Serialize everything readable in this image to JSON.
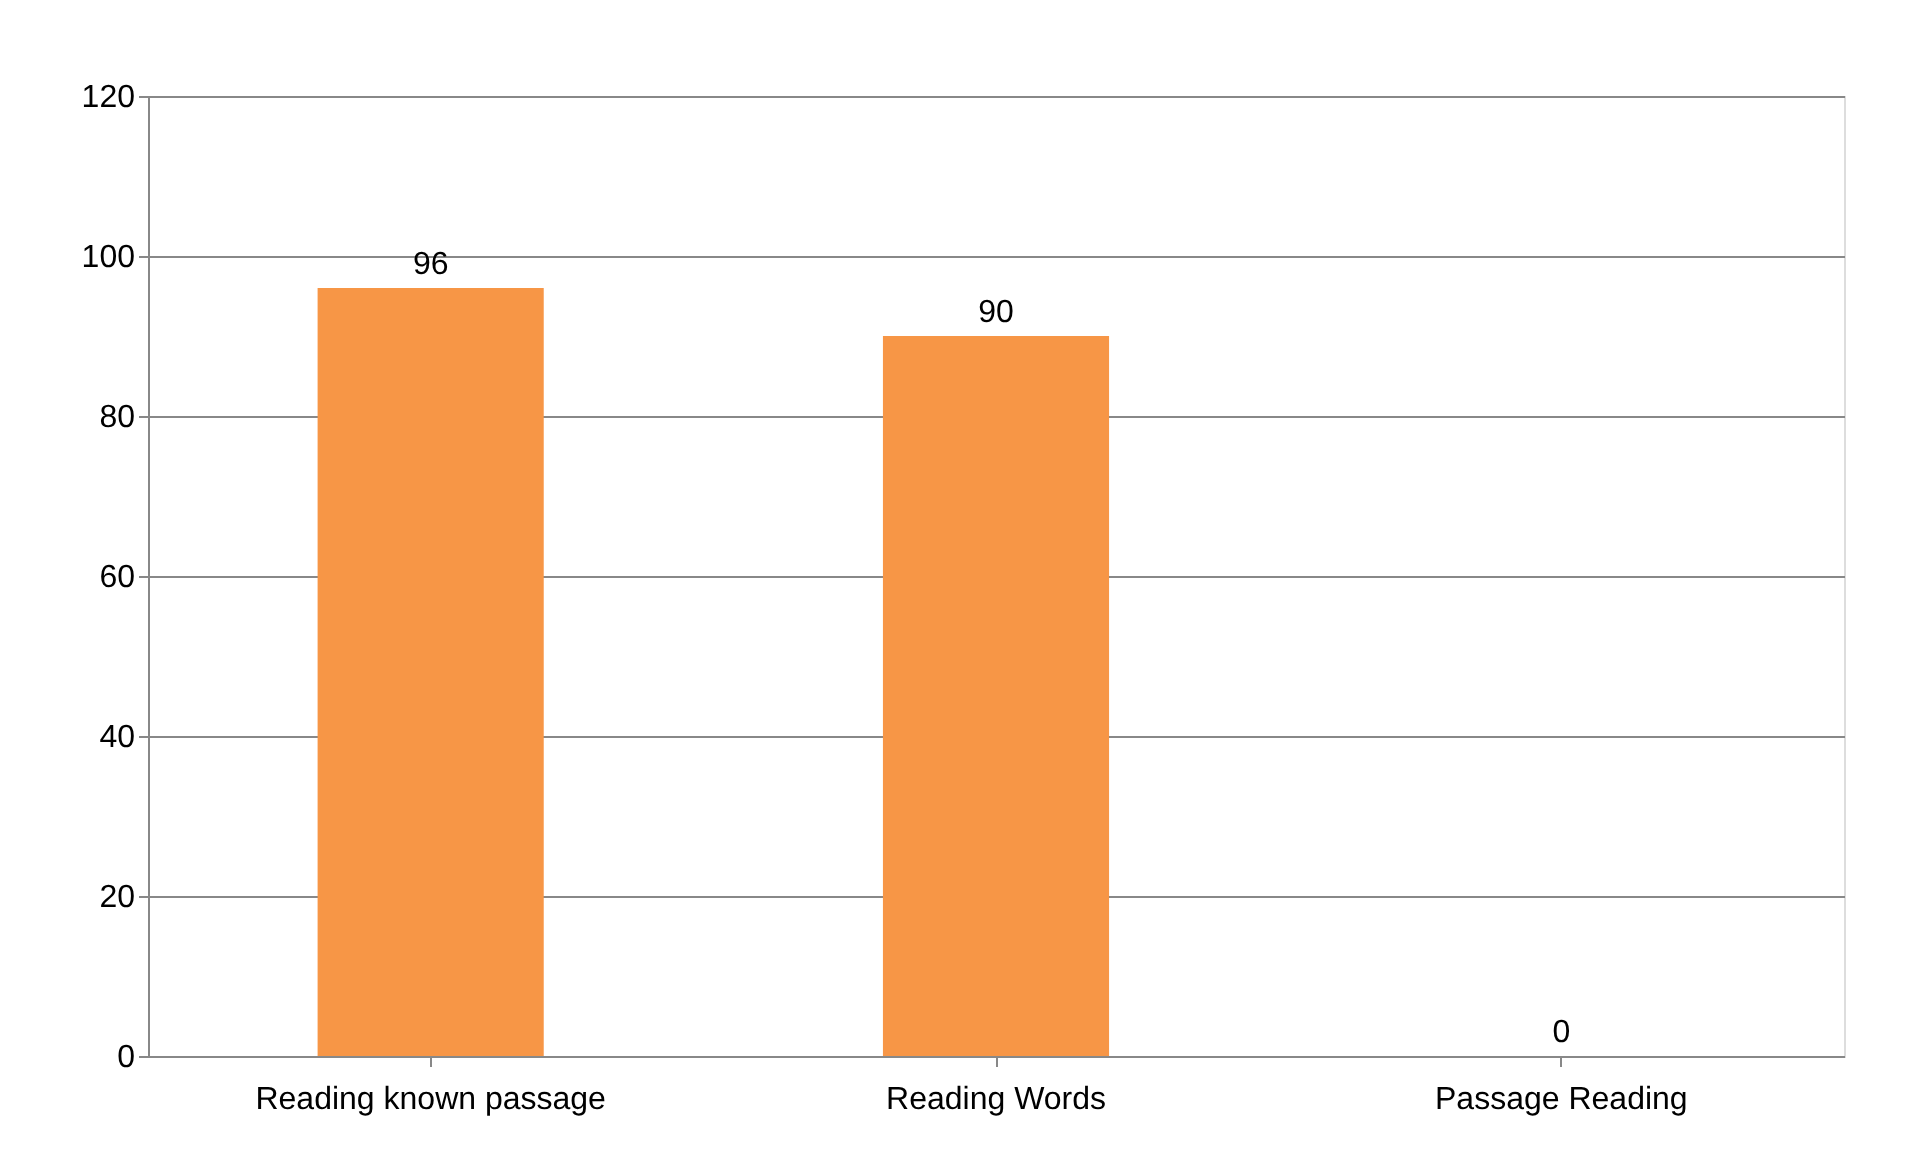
{
  "chart_data": {
    "type": "bar",
    "categories": [
      "Reading known passage",
      "Reading Words",
      "Passage Reading"
    ],
    "values": [
      96,
      90,
      0
    ],
    "color": "#f79646",
    "ylim": [
      0,
      120
    ],
    "yticks": [
      0,
      20,
      40,
      60,
      80,
      100,
      120
    ],
    "grid": "y",
    "data_labels": true
  }
}
